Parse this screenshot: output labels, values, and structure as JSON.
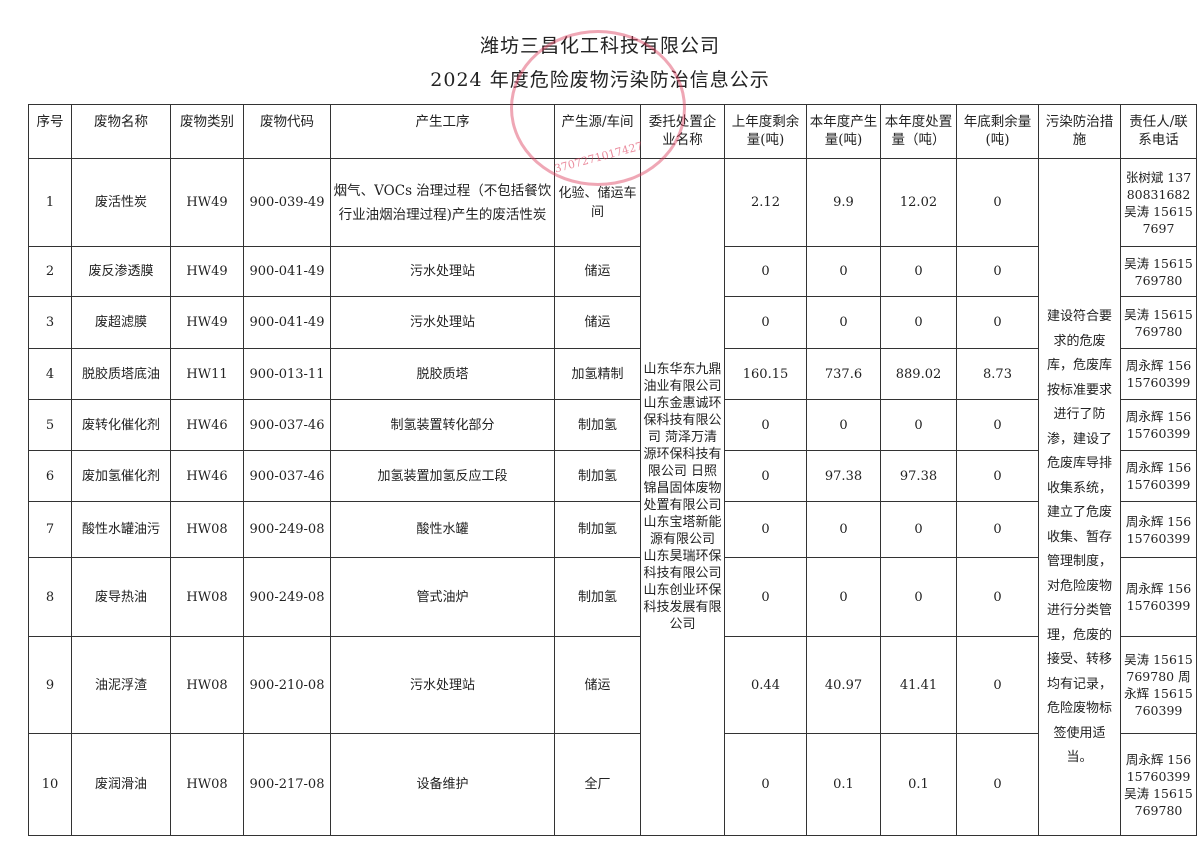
{
  "document": {
    "company": "潍坊三昌化工科技有限公司",
    "title": "2024 年度危险废物污染防治信息公示",
    "seal_text": "潍坊三昌化工科技有限公司",
    "seal_number": "3707271017427"
  },
  "headers": [
    "序号",
    "废物名称",
    "废物类别",
    "废物代码",
    "产生工序",
    "产生源/车间",
    "委托处置企业名称",
    "上年度剩余量(吨)",
    "本年度产生量(吨)",
    "本年度处置量（吨）",
    "年底剩余量(吨)",
    "污染防治措施",
    "责任人/联系电话"
  ],
  "disposal_companies": "山东华东九鼎油业有限公司 山东金惠诚环保科技有限公司 菏泽万清源环保科技有限公司 日照锦昌固体废物处置有限公司 山东宝塔新能源有限公司 山东昊瑞环保科技有限公司 山东创业环保科技发展有限公司",
  "measures": "建设符合要求的危废库，危废库按标准要求进行了防渗，建设了危废库导排收集系统，建立了危废收集、暂存管理制度，对危险废物进行分类管理，危废的接受、转移均有记录，危险废物标签使用适当。",
  "rows": [
    {
      "no": "1",
      "name": "废活性炭",
      "cat": "HW49",
      "code": "900-039-49",
      "process": "烟气、VOCs 治理过程（不包括餐饮行业油烟治理过程)产生的废活性炭",
      "source": "化验、储运车间",
      "prev": "2.12",
      "gen": "9.9",
      "disp": "12.02",
      "remain": "0",
      "contact": "张树斌 13780831682 吴涛 156157697"
    },
    {
      "no": "2",
      "name": "废反渗透膜",
      "cat": "HW49",
      "code": "900-041-49",
      "process": "污水处理站",
      "source": "储运",
      "prev": "0",
      "gen": "0",
      "disp": "0",
      "remain": "0",
      "contact": "吴涛 15615769780"
    },
    {
      "no": "3",
      "name": "废超滤膜",
      "cat": "HW49",
      "code": "900-041-49",
      "process": "污水处理站",
      "source": "储运",
      "prev": "0",
      "gen": "0",
      "disp": "0",
      "remain": "0",
      "contact": "吴涛 15615769780"
    },
    {
      "no": "4",
      "name": "脱胶质塔底油",
      "cat": "HW11",
      "code": "900-013-11",
      "process": "脱胶质塔",
      "source": "加氢精制",
      "prev": "160.15",
      "gen": "737.6",
      "disp": "889.02",
      "remain": "8.73",
      "contact": "周永辉 15615760399"
    },
    {
      "no": "5",
      "name": "废转化催化剂",
      "cat": "HW46",
      "code": "900-037-46",
      "process": "制氢装置转化部分",
      "source": "制加氢",
      "prev": "0",
      "gen": "0",
      "disp": "0",
      "remain": "0",
      "contact": "周永辉 15615760399"
    },
    {
      "no": "6",
      "name": "废加氢催化剂",
      "cat": "HW46",
      "code": "900-037-46",
      "process": "加氢装置加氢反应工段",
      "source": "制加氢",
      "prev": "0",
      "gen": "97.38",
      "disp": "97.38",
      "remain": "0",
      "contact": "周永辉 15615760399"
    },
    {
      "no": "7",
      "name": "酸性水罐油污",
      "cat": "HW08",
      "code": "900-249-08",
      "process": "酸性水罐",
      "source": "制加氢",
      "prev": "0",
      "gen": "0",
      "disp": "0",
      "remain": "0",
      "contact": "周永辉 15615760399"
    },
    {
      "no": "8",
      "name": "废导热油",
      "cat": "HW08",
      "code": "900-249-08",
      "process": "管式油炉",
      "source": "制加氢",
      "prev": "0",
      "gen": "0",
      "disp": "0",
      "remain": "0",
      "contact": "周永辉 15615760399"
    },
    {
      "no": "9",
      "name": "油泥浮渣",
      "cat": "HW08",
      "code": "900-210-08",
      "process": "污水处理站",
      "source": "储运",
      "prev": "0.44",
      "gen": "40.97",
      "disp": "41.41",
      "remain": "0",
      "contact": "吴涛 15615769780 周永辉 15615760399"
    },
    {
      "no": "10",
      "name": "废润滑油",
      "cat": "HW08",
      "code": "900-217-08",
      "process": "设备维护",
      "source": "全厂",
      "prev": "0",
      "gen": "0.1",
      "disp": "0.1",
      "remain": "0",
      "contact": "周永辉 15615760399 吴涛 15615769780"
    }
  ]
}
